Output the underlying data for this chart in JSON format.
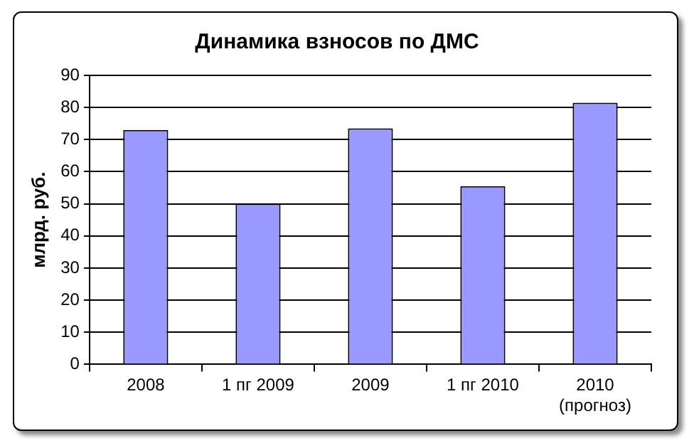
{
  "chart_data": {
    "type": "bar",
    "title": "Динамика взносов по ДМС",
    "ylabel": "млрд. руб.",
    "categories": [
      "2008",
      "1 пг 2009",
      "2009",
      "1 пг 2010",
      "2010\n(прогноз)"
    ],
    "values": [
      73,
      50,
      73.5,
      55.5,
      81.5
    ],
    "color": "#9999ff",
    "ylim": [
      0,
      90
    ],
    "yticks": [
      0,
      10,
      20,
      30,
      40,
      50,
      60,
      70,
      80,
      90
    ],
    "grid": "y",
    "legend": false
  }
}
